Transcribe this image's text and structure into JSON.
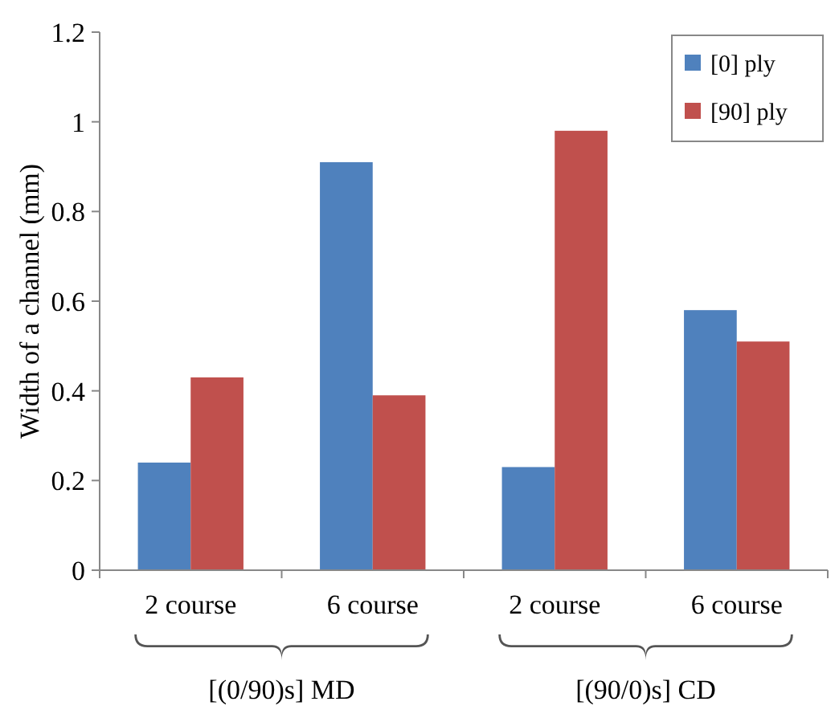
{
  "chart_data": {
    "type": "bar",
    "ylabel": "Width of a channel (mm)",
    "categories": [
      "2 course",
      "6 course",
      "2 course",
      "6 course"
    ],
    "series": [
      {
        "name": "[0] ply",
        "color": "#4f81bd",
        "values": [
          0.24,
          0.91,
          0.23,
          0.58
        ]
      },
      {
        "name": "[90] ply",
        "color": "#c0504d",
        "values": [
          0.43,
          0.39,
          0.98,
          0.51
        ]
      }
    ],
    "ylim": [
      0,
      1.2
    ],
    "yticks": [
      0,
      0.2,
      0.4,
      0.6,
      0.8,
      1,
      1.2
    ],
    "grid": false,
    "legend": "top right",
    "annotations": [
      "[(0/90)s] MD",
      "[(90/0)s] CD"
    ]
  }
}
